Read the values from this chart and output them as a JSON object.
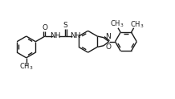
{
  "bg_color": "#ffffff",
  "line_color": "#1a1a1a",
  "lw": 1.0,
  "fs": 6.5,
  "figsize": [
    2.18,
    1.23
  ],
  "dpi": 100,
  "xlim": [
    0,
    10.5
  ],
  "ylim": [
    0,
    5.9
  ]
}
